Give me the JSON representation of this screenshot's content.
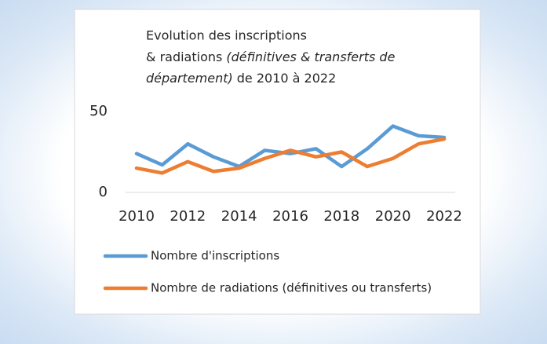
{
  "chart_data": {
    "type": "line",
    "title": {
      "line1": "Evolution des inscriptions",
      "line2": "& radiations",
      "line2_italic": "(définitives & transferts de",
      "line3_italic": "département)",
      "line3": "de 2010 à 2022"
    },
    "x": [
      2010,
      2011,
      2012,
      2013,
      2014,
      2015,
      2016,
      2017,
      2018,
      2019,
      2020,
      2021,
      2022
    ],
    "xlim": [
      2010,
      2022
    ],
    "xticks": [
      2010,
      2012,
      2014,
      2016,
      2018,
      2020,
      2022
    ],
    "ylim": [
      0,
      50
    ],
    "yticks": [
      0,
      50
    ],
    "grid": false,
    "legend": "bottom",
    "series": [
      {
        "name": "Nombre d'inscriptions",
        "color": "#5b9bd5",
        "values": [
          24,
          17,
          30,
          22,
          16,
          26,
          24,
          27,
          16,
          27,
          41,
          35,
          34
        ]
      },
      {
        "name": "Nombre de radiations (définitives ou transferts)",
        "color": "#ed7d31",
        "values": [
          15,
          12,
          19,
          13,
          15,
          21,
          26,
          22,
          25,
          16,
          21,
          30,
          33
        ]
      }
    ]
  }
}
